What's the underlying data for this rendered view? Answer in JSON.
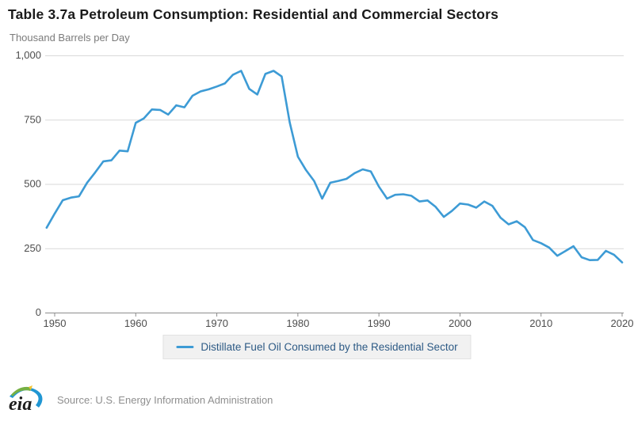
{
  "title": "Table 3.7a Petroleum Consumption: Residential and Commercial Sectors",
  "y_unit_label": "Thousand Barrels per Day",
  "legend": {
    "series_label": "Distillate Fuel Oil Consumed by the Residential Sector"
  },
  "footer": {
    "logo_text": "eia",
    "source": "Source: U.S. Energy Information Administration"
  },
  "colors": {
    "line": "#3d9bd5",
    "legend_text": "#2d5a85",
    "grid": "#d9d9d9",
    "axis": "#8c8c8c"
  },
  "chart_data": {
    "type": "line",
    "title": "Table 3.7a Petroleum Consumption: Residential and Commercial Sectors",
    "xlabel": "",
    "ylabel": "Thousand Barrels per Day",
    "ylim": [
      0,
      1000
    ],
    "yticks": [
      0,
      250,
      500,
      750,
      1000
    ],
    "ytick_labels": [
      "0",
      "250",
      "500",
      "750",
      "1,000"
    ],
    "xticks": [
      1950,
      1960,
      1970,
      1980,
      1990,
      2000,
      2010,
      2020
    ],
    "grid": "horizontal",
    "legend_position": "bottom",
    "x": [
      1949,
      1950,
      1951,
      1952,
      1953,
      1954,
      1955,
      1956,
      1957,
      1958,
      1959,
      1960,
      1961,
      1962,
      1963,
      1964,
      1965,
      1966,
      1967,
      1968,
      1969,
      1970,
      1971,
      1972,
      1973,
      1974,
      1975,
      1976,
      1977,
      1978,
      1979,
      1980,
      1981,
      1982,
      1983,
      1984,
      1985,
      1986,
      1987,
      1988,
      1989,
      1990,
      1991,
      1992,
      1993,
      1994,
      1995,
      1996,
      1997,
      1998,
      1999,
      2000,
      2001,
      2002,
      2003,
      2004,
      2005,
      2006,
      2007,
      2008,
      2009,
      2010,
      2011,
      2012,
      2013,
      2014,
      2015,
      2016,
      2017,
      2018,
      2019,
      2020
    ],
    "series": [
      {
        "name": "Distillate Fuel Oil Consumed by the Residential Sector",
        "values": [
          330,
          385,
          437,
          447,
          452,
          505,
          545,
          588,
          592,
          630,
          627,
          738,
          755,
          790,
          788,
          770,
          806,
          798,
          843,
          860,
          868,
          879,
          891,
          925,
          940,
          870,
          848,
          928,
          940,
          918,
          739,
          606,
          554,
          512,
          443,
          505,
          512,
          520,
          542,
          557,
          549,
          490,
          443,
          458,
          460,
          454,
          432,
          436,
          411,
          372,
          395,
          424,
          420,
          408,
          432,
          415,
          369,
          343,
          355,
          332,
          282,
          270,
          253,
          221,
          239,
          258,
          215,
          204,
          205,
          240,
          225,
          195
        ]
      }
    ]
  }
}
